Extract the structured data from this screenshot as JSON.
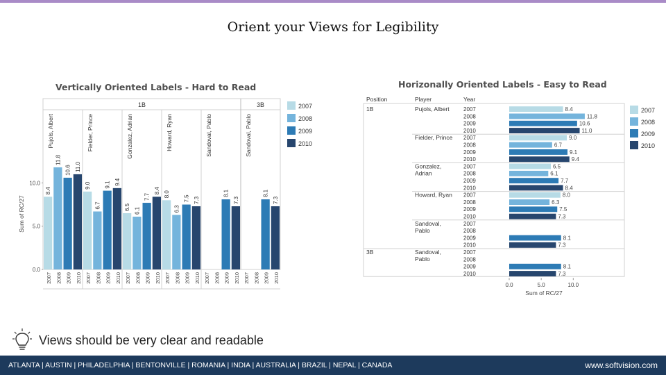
{
  "slide": {
    "title": "Orient your Views for Legibility",
    "caption": "Views should be very clear and readable",
    "footer_cities": "ATLANTA | AUSTIN | PHILADELPHIA | BENTONVILLE | ROMANIA | INDIA | AUSTRALIA | BRAZIL | NEPAL | CANADA",
    "footer_site": "www.softvision.com"
  },
  "colors": {
    "2007": "#b7dbe6",
    "2008": "#74b4dc",
    "2009": "#2d7bb5",
    "2010": "#27466e",
    "footer": "#1d3a5c",
    "top_bar": "#a98bc7"
  },
  "chart_data": [
    {
      "type": "bar",
      "title": "Vertically Oriented Labels - Hard to Read",
      "ylabel": "Sum of RC/27",
      "ylim": [
        0,
        13
      ],
      "yticks": [
        "0.0",
        "5.0",
        "10.0"
      ],
      "position_labels": [
        "1B",
        "3B"
      ],
      "legend": [
        "2007",
        "2008",
        "2009",
        "2010"
      ],
      "legend_position": "right",
      "groups": [
        {
          "position": "1B",
          "player": "Pujols, Albert",
          "values": [
            8.4,
            11.8,
            10.6,
            11.0
          ],
          "labels": [
            "8.4",
            "11.8",
            "10.6",
            "11.0"
          ]
        },
        {
          "position": "1B",
          "player": "Fielder, Prince",
          "values": [
            9.0,
            6.7,
            9.1,
            9.4
          ],
          "labels": [
            "9.0",
            "6.7",
            "9.1",
            "9.4"
          ]
        },
        {
          "position": "1B",
          "player": "Gonzalez, Adrian",
          "values": [
            6.5,
            6.1,
            7.7,
            8.4
          ],
          "labels": [
            "6.5",
            "6.1",
            "7.7",
            "8.4"
          ]
        },
        {
          "position": "1B",
          "player": "Howard, Ryan",
          "values": [
            8.0,
            6.3,
            7.5,
            7.3
          ],
          "labels": [
            "8.0",
            "6.3",
            "7.5",
            "7.3"
          ]
        },
        {
          "position": "1B",
          "player": "Sandoval, Pablo",
          "values": [
            null,
            null,
            8.1,
            7.3
          ],
          "labels": [
            "",
            "",
            "8.1",
            "7.3"
          ]
        },
        {
          "position": "3B",
          "player": "Sandoval, Pablo",
          "values": [
            null,
            null,
            8.1,
            7.3
          ],
          "labels": [
            "",
            "",
            "8.1",
            "7.3"
          ]
        }
      ],
      "years": [
        "2007",
        "2008",
        "2009",
        "2010"
      ]
    },
    {
      "type": "bar",
      "orientation": "horizontal",
      "title": "Horizonally Oriented Labels - Easy to Read",
      "xlabel": "Sum of RC/27",
      "xlim": [
        0,
        13
      ],
      "xticks": [
        "0.0",
        "5.0",
        "10.0"
      ],
      "column_headers": [
        "Position",
        "Player",
        "Year"
      ],
      "legend": [
        "2007",
        "2008",
        "2009",
        "2010"
      ],
      "legend_position": "right",
      "groups": [
        {
          "position": "1B",
          "player": "Pujols, Albert",
          "values": [
            8.4,
            11.8,
            10.6,
            11.0
          ],
          "labels": [
            "8.4",
            "11.8",
            "10.6",
            "11.0"
          ]
        },
        {
          "position": "",
          "player": "Fielder, Prince",
          "values": [
            9.0,
            6.7,
            9.1,
            9.4
          ],
          "labels": [
            "9.0",
            "6.7",
            "9.1",
            "9.4"
          ]
        },
        {
          "position": "",
          "player": "Gonzalez, Adrian",
          "values": [
            6.5,
            6.1,
            7.7,
            8.4
          ],
          "labels": [
            "6.5",
            "6.1",
            "7.7",
            "8.4"
          ]
        },
        {
          "position": "",
          "player": "Howard, Ryan",
          "values": [
            8.0,
            6.3,
            7.5,
            7.3
          ],
          "labels": [
            "8.0",
            "6.3",
            "7.5",
            "7.3"
          ]
        },
        {
          "position": "",
          "player": "Sandoval, Pablo",
          "values": [
            null,
            null,
            8.1,
            7.3
          ],
          "labels": [
            "",
            "",
            "8.1",
            "7.3"
          ]
        },
        {
          "position": "3B",
          "player": "Sandoval, Pablo",
          "values": [
            null,
            null,
            8.1,
            7.3
          ],
          "labels": [
            "",
            "",
            "8.1",
            "7.3"
          ]
        }
      ],
      "years": [
        "2007",
        "2008",
        "2009",
        "2010"
      ]
    }
  ]
}
